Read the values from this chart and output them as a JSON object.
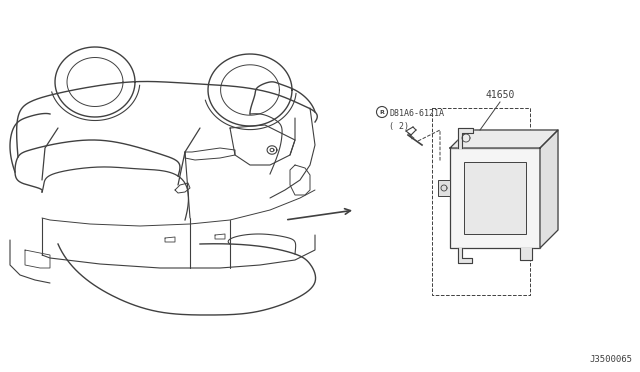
{
  "bg_color": "#ffffff",
  "line_color": "#404040",
  "text_color": "#404040",
  "part_label_1": "D81A6-6121A\n( 2)",
  "part_label_2": "41650",
  "diagram_code": "J3500065",
  "fig_width": 6.4,
  "fig_height": 3.72,
  "dpi": 100,
  "circle_R_label": "R"
}
